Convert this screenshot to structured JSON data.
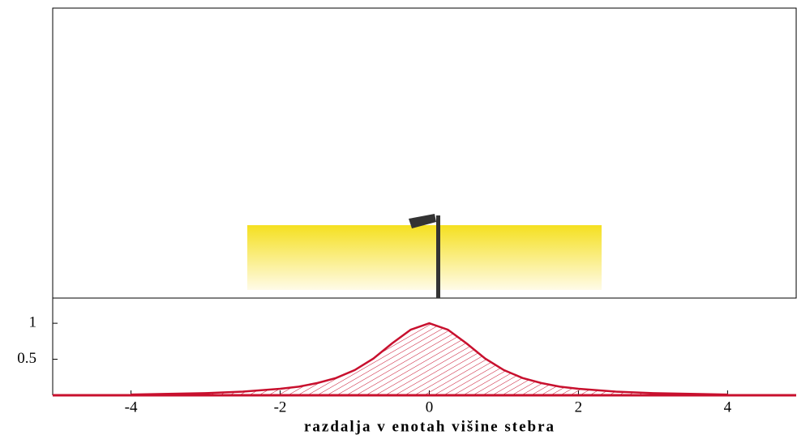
{
  "chart_data": {
    "type": "area",
    "x_label": "razdalja v enotah višine stebra",
    "x": [
      -4,
      -3.5,
      -3,
      -2.5,
      -2,
      -1.75,
      -1.5,
      -1.25,
      -1,
      -0.75,
      -0.5,
      -0.25,
      0,
      0.25,
      0.5,
      0.75,
      1,
      1.25,
      1.5,
      1.75,
      2,
      2.5,
      3,
      3.5,
      4
    ],
    "values": [
      0.01,
      0.02,
      0.03,
      0.05,
      0.09,
      0.12,
      0.17,
      0.24,
      0.35,
      0.51,
      0.72,
      0.91,
      1,
      0.91,
      0.72,
      0.51,
      0.35,
      0.24,
      0.17,
      0.12,
      0.09,
      0.05,
      0.03,
      0.02,
      0.01
    ],
    "color": "#c8102e",
    "xlim": [
      -5.05,
      4.92
    ],
    "ylim": [
      0,
      1.35
    ],
    "xticks": [
      -4,
      -2,
      0,
      2,
      4
    ],
    "yticks": [
      0.5,
      1
    ]
  }
}
